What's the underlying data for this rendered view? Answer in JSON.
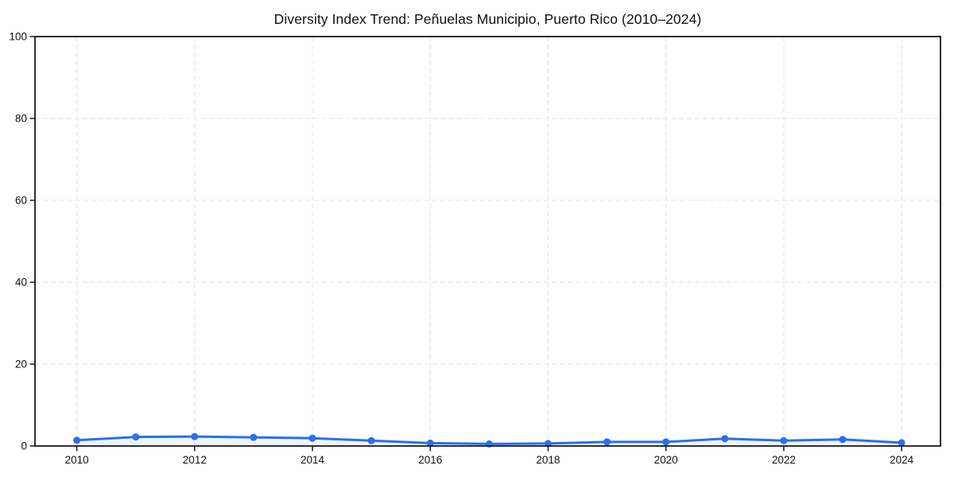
{
  "chart_data": {
    "type": "line",
    "title": "Diversity Index Trend: Peñuelas Municipio, Puerto Rico (2010–2024)",
    "xlabel": "",
    "ylabel": "",
    "x": [
      2010,
      2011,
      2012,
      2013,
      2014,
      2015,
      2016,
      2017,
      2018,
      2019,
      2020,
      2021,
      2022,
      2023,
      2024
    ],
    "series": [
      {
        "name": "Diversity Index",
        "values": [
          1.4,
          2.2,
          2.3,
          2.1,
          1.9,
          1.3,
          0.7,
          0.5,
          0.6,
          1.0,
          1.0,
          1.8,
          1.3,
          1.6,
          0.8
        ]
      }
    ],
    "x_ticks": [
      2010,
      2012,
      2014,
      2016,
      2018,
      2020,
      2022,
      2024
    ],
    "y_ticks": [
      0,
      20,
      40,
      60,
      80,
      100
    ],
    "xlim": [
      2009.29,
      2024.66
    ],
    "ylim": [
      0,
      100
    ],
    "grid": true,
    "grid_style": "dashed",
    "legend": "none",
    "line_color": "#2a6ff0",
    "marker_color": "#2a6ff0",
    "area_fill_color": "#2a6ff0",
    "area_fill_opacity": 0.08,
    "grid_color": "#e4e4e4",
    "spine_color": "#1a1a1a",
    "tick_label_color": "#111111"
  }
}
